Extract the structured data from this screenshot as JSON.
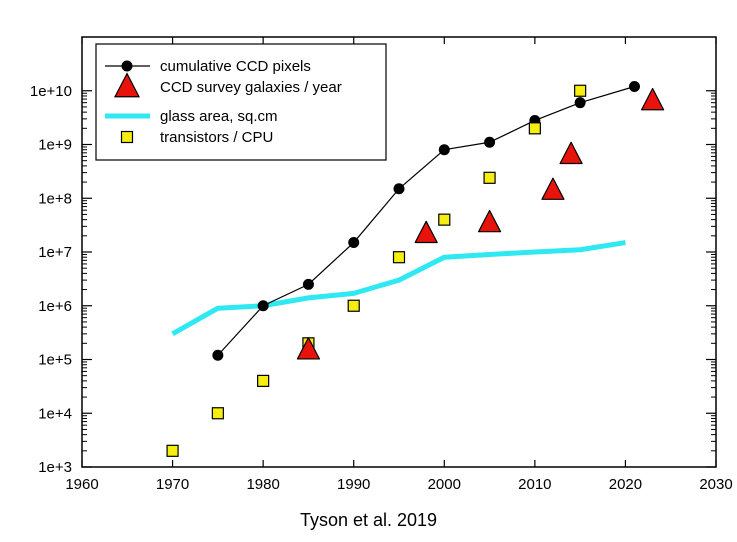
{
  "chart_data": {
    "type": "scatter",
    "yscale": "log",
    "xlim": [
      1960,
      2030
    ],
    "ylim": [
      1000,
      100000000000
    ],
    "xticks": [
      1960,
      1970,
      1980,
      1990,
      2000,
      2010,
      2020,
      2030
    ],
    "yticks": [
      {
        "value": 1000,
        "label": "1e+3"
      },
      {
        "value": 10000,
        "label": "1e+4"
      },
      {
        "value": 100000,
        "label": "1e+5"
      },
      {
        "value": 1000000,
        "label": "1e+6"
      },
      {
        "value": 10000000,
        "label": "1e+7"
      },
      {
        "value": 100000000,
        "label": "1e+8"
      },
      {
        "value": 1000000000,
        "label": "1e+9"
      },
      {
        "value": 10000000000,
        "label": "1e+10"
      }
    ],
    "legend_position": "top-left",
    "series": [
      {
        "name": "cumulative CCD pixels",
        "style": "line-circle",
        "color": "#000000",
        "points": [
          [
            1975,
            120000
          ],
          [
            1980,
            1000000
          ],
          [
            1985,
            2500000
          ],
          [
            1990,
            15000000
          ],
          [
            1995,
            150000000
          ],
          [
            2000,
            800000000
          ],
          [
            2005,
            1100000000
          ],
          [
            2010,
            2800000000
          ],
          [
            2015,
            6000000000
          ],
          [
            2021,
            12000000000
          ]
        ]
      },
      {
        "name": "CCD survey galaxies / year",
        "style": "triangle",
        "color": "#e8140c",
        "points": [
          [
            1985,
            150000
          ],
          [
            1998,
            22000000
          ],
          [
            2005,
            35000000
          ],
          [
            2012,
            140000000
          ],
          [
            2014,
            650000000
          ],
          [
            2023,
            6500000000
          ]
        ]
      },
      {
        "name": "glass area, sq.cm",
        "style": "thick-line",
        "color": "#2ee8f2",
        "points": [
          [
            1970,
            300000
          ],
          [
            1975,
            900000
          ],
          [
            1980,
            1000000
          ],
          [
            1985,
            1400000
          ],
          [
            1990,
            1700000
          ],
          [
            1995,
            3000000
          ],
          [
            2000,
            8000000
          ],
          [
            2005,
            9000000
          ],
          [
            2010,
            10000000
          ],
          [
            2015,
            11000000
          ],
          [
            2020,
            15000000
          ]
        ]
      },
      {
        "name": "transistors / CPU",
        "style": "square",
        "color": "#f5ee10",
        "points": [
          [
            1970,
            2000
          ],
          [
            1975,
            10000
          ],
          [
            1980,
            40000
          ],
          [
            1985,
            200000
          ],
          [
            1990,
            1000000
          ],
          [
            1995,
            8000000
          ],
          [
            2000,
            40000000
          ],
          [
            2005,
            240000000
          ],
          [
            2010,
            2000000000
          ],
          [
            2015,
            10000000000
          ]
        ]
      }
    ]
  },
  "caption": "Tyson et al. 2019"
}
